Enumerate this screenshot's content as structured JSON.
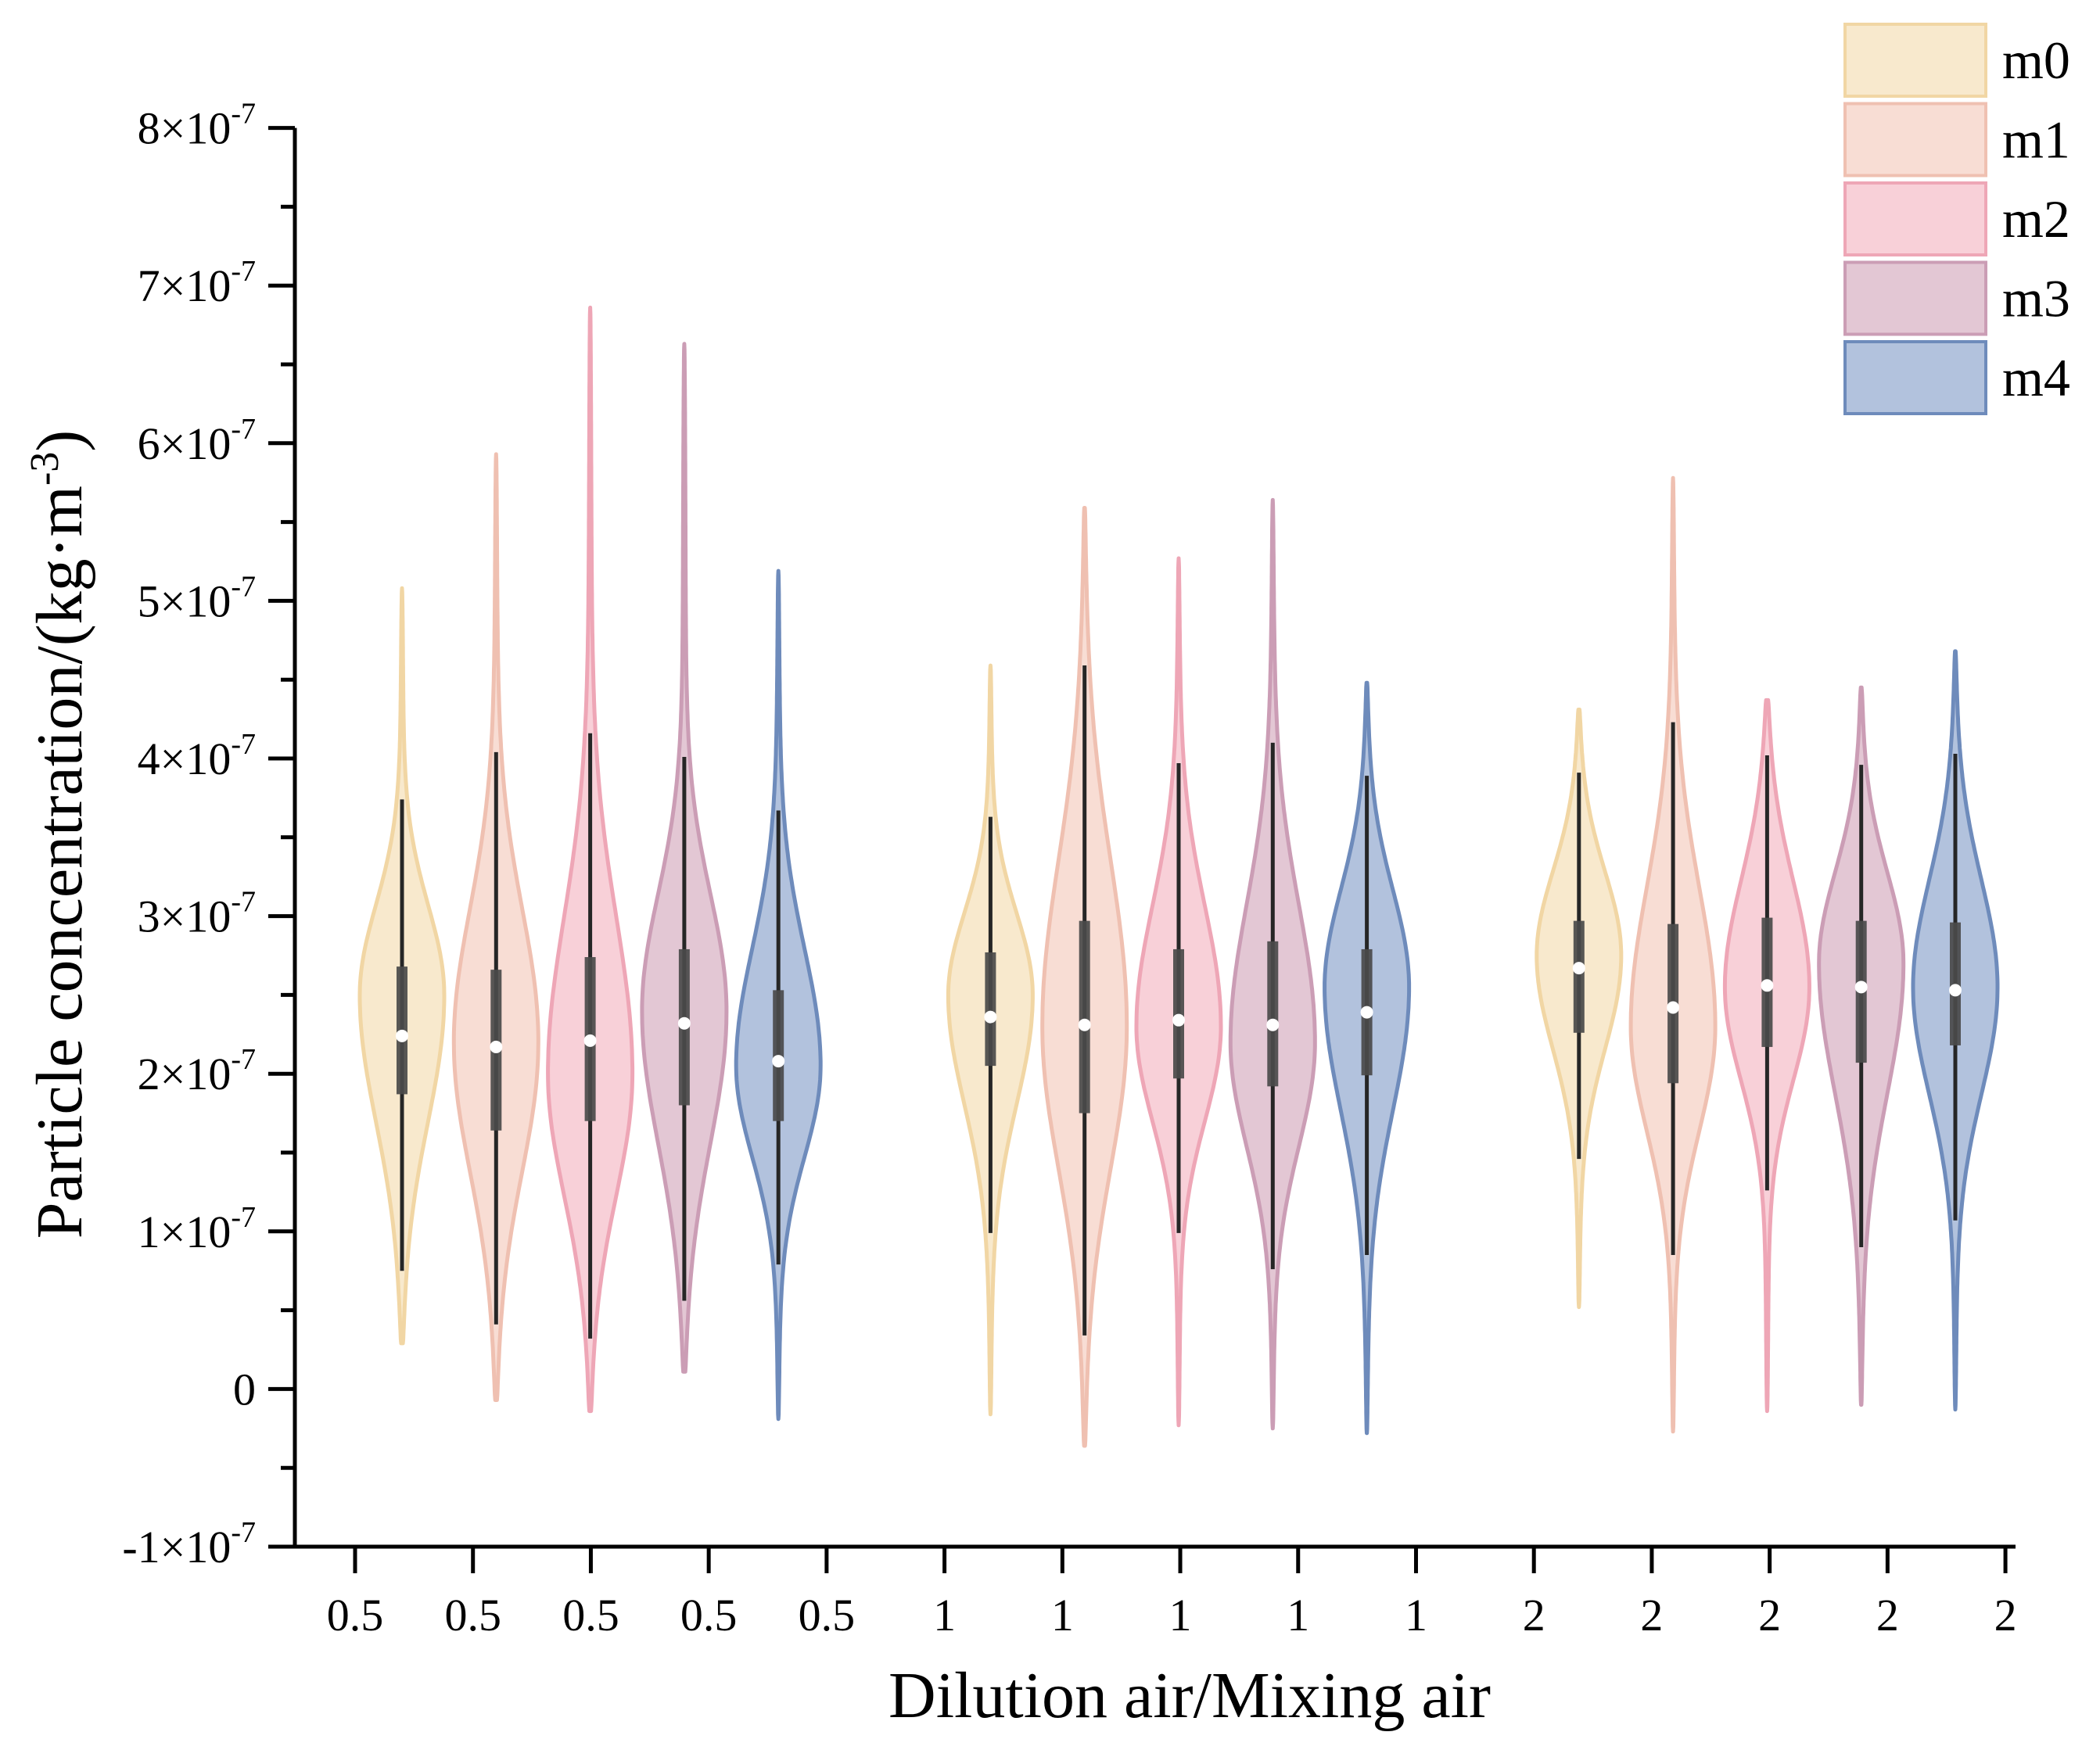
{
  "chart_data": {
    "type": "violin",
    "title": "",
    "xlabel": "Dilution air/Mixing air",
    "ylabel": {
      "text": "Particle concentration/(kg·m",
      "sup": "-3",
      "close": ")"
    },
    "y_unit_multiplier": 1e-07,
    "ylim": [
      -1,
      8
    ],
    "y_minor_tick_interval": 0.5,
    "y_ticks": [
      {
        "value": -1,
        "base": "-1×10",
        "exp": "-7"
      },
      {
        "value": 0,
        "base": "0"
      },
      {
        "value": 1,
        "base": "1×10",
        "exp": "-7"
      },
      {
        "value": 2,
        "base": "2×10",
        "exp": "-7"
      },
      {
        "value": 3,
        "base": "3×10",
        "exp": "-7"
      },
      {
        "value": 4,
        "base": "4×10",
        "exp": "-7"
      },
      {
        "value": 5,
        "base": "5×10",
        "exp": "-7"
      },
      {
        "value": 6,
        "base": "6×10",
        "exp": "-7"
      },
      {
        "value": 7,
        "base": "7×10",
        "exp": "-7"
      },
      {
        "value": 8,
        "base": "8×10",
        "exp": "-7"
      }
    ],
    "x_tick_labels": [
      "0.5",
      "0.5",
      "0.5",
      "0.5",
      "0.5",
      "1",
      "1",
      "1",
      "1",
      "1",
      "2",
      "2",
      "2",
      "2",
      "2"
    ],
    "legend": {
      "position": "top-right"
    },
    "series": [
      {
        "name": "m0",
        "fill": "#F7E4C2",
        "stroke": "#F1D6A4",
        "values": [
          {
            "ratio": 0.5,
            "min": 0.29,
            "whisker_low": 0.75,
            "q1": 1.87,
            "median": 2.24,
            "q3": 2.68,
            "whisker_high": 3.74,
            "max": 5.08,
            "mode": 2.5
          },
          {
            "ratio": 1,
            "min": -0.16,
            "whisker_low": 0.99,
            "q1": 2.05,
            "median": 2.36,
            "q3": 2.77,
            "whisker_high": 3.63,
            "max": 4.59,
            "mode": 2.5
          },
          {
            "ratio": 2,
            "min": 0.52,
            "whisker_low": 1.46,
            "q1": 2.26,
            "median": 2.67,
            "q3": 2.97,
            "whisker_high": 3.91,
            "max": 4.31,
            "mode": 2.75
          }
        ]
      },
      {
        "name": "m1",
        "fill": "#F6D5CA",
        "stroke": "#EFC0B1",
        "values": [
          {
            "ratio": 0.5,
            "min": -0.07,
            "whisker_low": 0.41,
            "q1": 1.64,
            "median": 2.17,
            "q3": 2.66,
            "whisker_high": 4.04,
            "max": 5.93,
            "mode": 2.2
          },
          {
            "ratio": 1,
            "min": -0.36,
            "whisker_low": 0.34,
            "q1": 1.75,
            "median": 2.31,
            "q3": 2.97,
            "whisker_high": 4.59,
            "max": 5.59,
            "mode": 2.3
          },
          {
            "ratio": 2,
            "min": -0.27,
            "whisker_low": 0.85,
            "q1": 1.94,
            "median": 2.42,
            "q3": 2.95,
            "whisker_high": 4.23,
            "max": 5.78,
            "mode": 2.3
          }
        ]
      },
      {
        "name": "m2",
        "fill": "#F6C6CF",
        "stroke": "#EEA6B6",
        "values": [
          {
            "ratio": 0.5,
            "min": -0.14,
            "whisker_low": 0.32,
            "q1": 1.7,
            "median": 2.21,
            "q3": 2.74,
            "whisker_high": 4.16,
            "max": 6.86,
            "mode": 2.0
          },
          {
            "ratio": 1,
            "min": -0.23,
            "whisker_low": 0.99,
            "q1": 1.97,
            "median": 2.34,
            "q3": 2.79,
            "whisker_high": 3.97,
            "max": 5.27,
            "mode": 2.3
          },
          {
            "ratio": 2,
            "min": -0.14,
            "whisker_low": 1.26,
            "q1": 2.17,
            "median": 2.56,
            "q3": 2.99,
            "whisker_high": 4.02,
            "max": 4.37,
            "mode": 2.55
          }
        ]
      },
      {
        "name": "m3",
        "fill": "#DDBBCB",
        "stroke": "#CB9DB5",
        "values": [
          {
            "ratio": 0.5,
            "min": 0.11,
            "whisker_low": 0.56,
            "q1": 1.8,
            "median": 2.32,
            "q3": 2.79,
            "whisker_high": 4.01,
            "max": 6.63,
            "mode": 2.4
          },
          {
            "ratio": 1,
            "min": -0.25,
            "whisker_low": 0.76,
            "q1": 1.92,
            "median": 2.31,
            "q3": 2.84,
            "whisker_high": 4.1,
            "max": 5.64,
            "mode": 2.2
          },
          {
            "ratio": 2,
            "min": -0.1,
            "whisker_low": 0.9,
            "q1": 2.07,
            "median": 2.55,
            "q3": 2.97,
            "whisker_high": 3.96,
            "max": 4.45,
            "mode": 2.7
          }
        ]
      },
      {
        "name": "m4",
        "fill": "#A1B4D5",
        "stroke": "#6E8BBB",
        "values": [
          {
            "ratio": 0.5,
            "min": -0.19,
            "whisker_low": 0.79,
            "q1": 1.7,
            "median": 2.08,
            "q3": 2.53,
            "whisker_high": 3.67,
            "max": 5.19,
            "mode": 2.05
          },
          {
            "ratio": 1,
            "min": -0.28,
            "whisker_low": 0.85,
            "q1": 1.99,
            "median": 2.39,
            "q3": 2.79,
            "whisker_high": 3.89,
            "max": 4.48,
            "mode": 2.55
          },
          {
            "ratio": 2,
            "min": -0.13,
            "whisker_low": 1.07,
            "q1": 2.18,
            "median": 2.53,
            "q3": 2.96,
            "whisker_high": 4.03,
            "max": 4.68,
            "mode": 2.55
          }
        ]
      }
    ]
  }
}
